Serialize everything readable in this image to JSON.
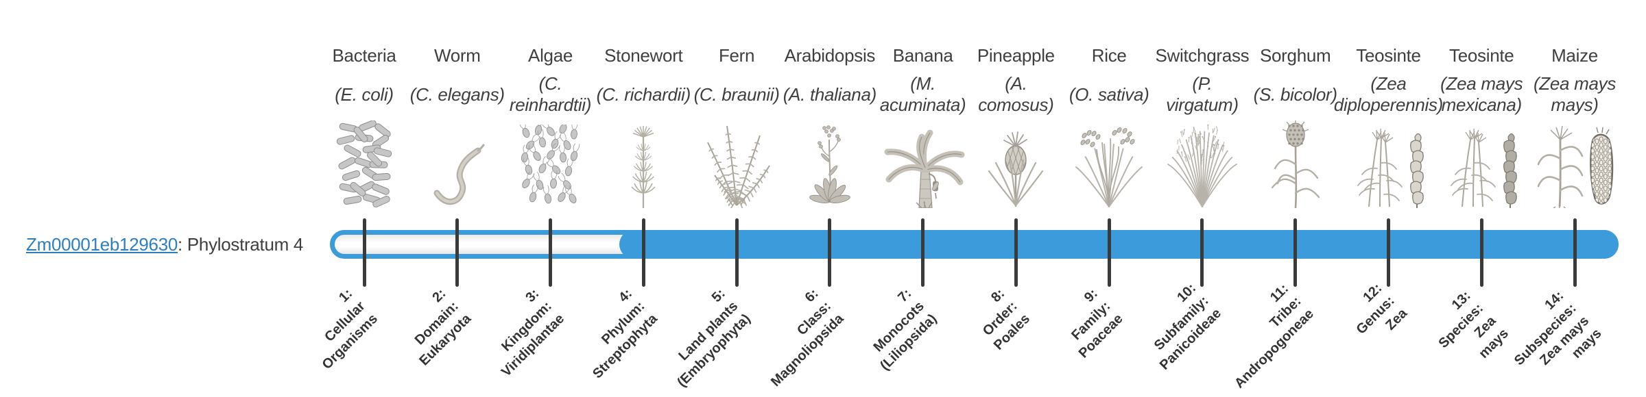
{
  "gene": {
    "id": "Zm00001eb129630",
    "stratum_text": ": Phylostratum 4",
    "phylostratum": 4
  },
  "colors": {
    "bar": "#3b9bdb",
    "link": "#2e7fc1",
    "tick": "#3a3a3a",
    "text": "#3f3f3f",
    "bottom_label": "#333333",
    "icon_gray": "#b3afa5"
  },
  "bar": {
    "filled_from_stratum": 4
  },
  "organisms": [
    {
      "index": 1,
      "common": "Bacteria",
      "sci": "(E. coli)",
      "sci_lines": [
        "(E. coli)"
      ],
      "icon": "bacteria-icon",
      "stratum_lines": [
        "1:",
        "Cellular",
        "Organisms"
      ],
      "stratum_label": "1: Cellular Organisms"
    },
    {
      "index": 2,
      "common": "Worm",
      "sci": "(C. elegans)",
      "sci_lines": [
        "(C. elegans)"
      ],
      "icon": "worm-icon",
      "stratum_lines": [
        "2:",
        "Domain:",
        "Eukaryota"
      ],
      "stratum_label": "2: Domain: Eukaryota"
    },
    {
      "index": 3,
      "common": "Algae",
      "sci": "(C. reinhardtii)",
      "sci_lines": [
        "(C.",
        "reinhardtii)"
      ],
      "icon": "algae-icon",
      "stratum_lines": [
        "3:",
        "Kingdom:",
        "Viridiplantae"
      ],
      "stratum_label": "3: Kingdom: Viridiplantae"
    },
    {
      "index": 4,
      "common": "Stonewort",
      "sci": "(C. richardii)",
      "sci_lines": [
        "(C. richardii)"
      ],
      "icon": "stonewort-icon",
      "stratum_lines": [
        "4:",
        "Phylum:",
        "Streptophyta"
      ],
      "stratum_label": "4: Phylum: Streptophyta"
    },
    {
      "index": 5,
      "common": "Fern",
      "sci": "(C. braunii)",
      "sci_lines": [
        "(C. braunii)"
      ],
      "icon": "fern-icon",
      "stratum_lines": [
        "5:",
        "Land plants",
        "(Embryophyta)"
      ],
      "stratum_label": "5: Land plants (Embryophyta)"
    },
    {
      "index": 6,
      "common": "Arabidopsis",
      "sci": "(A. thaliana)",
      "sci_lines": [
        "(A. thaliana)"
      ],
      "icon": "arabidopsis-icon",
      "stratum_lines": [
        "6:",
        "Class:",
        "Magnoliopsida"
      ],
      "stratum_label": "6: Class: Magnoliopsida"
    },
    {
      "index": 7,
      "common": "Banana",
      "sci": "(M. acuminata)",
      "sci_lines": [
        "(M.",
        "acuminata)"
      ],
      "icon": "banana-icon",
      "stratum_lines": [
        "7:",
        "Monocots",
        "(Liliopsida)"
      ],
      "stratum_label": "7: Monocots (Liliopsida)"
    },
    {
      "index": 8,
      "common": "Pineapple",
      "sci": "(A. comosus)",
      "sci_lines": [
        "(A.",
        "comosus)"
      ],
      "icon": "pineapple-icon",
      "stratum_lines": [
        "8:",
        "Order:",
        "Poales"
      ],
      "stratum_label": "8: Order: Poales"
    },
    {
      "index": 9,
      "common": "Rice",
      "sci": "(O. sativa)",
      "sci_lines": [
        "(O. sativa)"
      ],
      "icon": "rice-icon",
      "stratum_lines": [
        "9:",
        "Family:",
        "Poaceae"
      ],
      "stratum_label": "9: Family: Poaceae"
    },
    {
      "index": 10,
      "common": "Switchgrass",
      "sci": "(P. virgatum)",
      "sci_lines": [
        "(P.",
        "virgatum)"
      ],
      "icon": "switchgrass-icon",
      "stratum_lines": [
        "10:",
        "Subfamily:",
        "Panicoideae"
      ],
      "stratum_label": "10: Subfamily: Panicoideae"
    },
    {
      "index": 11,
      "common": "Sorghum",
      "sci": "(S. bicolor)",
      "sci_lines": [
        "(S. bicolor)"
      ],
      "icon": "sorghum-icon",
      "stratum_lines": [
        "11:",
        "Tribe:",
        "Andropogoneae"
      ],
      "stratum_label": "11: Tribe: Andropogoneae"
    },
    {
      "index": 12,
      "common": "Teosinte",
      "sci": "(Zea diploperennis)",
      "sci_lines": [
        "(Zea",
        "diploperennis)"
      ],
      "icon": "teosinte-diploperennis-icon",
      "stratum_lines": [
        "12:",
        "Genus:",
        "Zea"
      ],
      "stratum_label": "12: Genus: Zea"
    },
    {
      "index": 13,
      "common": "Teosinte",
      "sci": "(Zea mays mexicana)",
      "sci_lines": [
        "(Zea mays",
        "mexicana)"
      ],
      "icon": "teosinte-mexicana-icon",
      "stratum_lines": [
        "13:",
        "Species:",
        "Zea",
        "mays"
      ],
      "stratum_label": "13: Species: Zea mays"
    },
    {
      "index": 14,
      "common": "Maize",
      "sci": "(Zea mays mays)",
      "sci_lines": [
        "(Zea mays",
        "mays)"
      ],
      "icon": "maize-icon",
      "stratum_lines": [
        "14:",
        "Subspecies:",
        "Zea mays",
        "mays"
      ],
      "stratum_label": "14: Subspecies: Zea mays mays"
    }
  ]
}
